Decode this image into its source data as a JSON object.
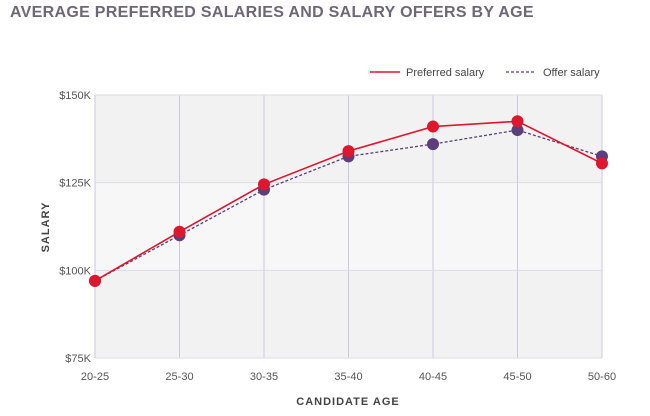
{
  "chart_data": {
    "type": "line",
    "title": "AVERAGE PREFERRED SALARIES AND SALARY OFFERS BY AGE",
    "xlabel": "CANDIDATE AGE",
    "ylabel": "SALARY",
    "categories": [
      "20-25",
      "25-30",
      "30-35",
      "35-40",
      "40-45",
      "45-50",
      "50-60"
    ],
    "y_ticks": [
      "$75K",
      "$100K",
      "$125K",
      "$150K"
    ],
    "ylim": [
      75000,
      150000
    ],
    "grid": true,
    "legend_position": "top-right",
    "series": [
      {
        "name": "Preferred salary",
        "color": "#e0152e",
        "line_style": "solid",
        "values": [
          97000,
          111000,
          124500,
          134000,
          141000,
          142500,
          130500
        ]
      },
      {
        "name": "Offer salary",
        "color": "#5b3f7c",
        "line_style": "dotted",
        "values": [
          97000,
          110000,
          123000,
          132500,
          136000,
          140000,
          132500
        ]
      }
    ]
  }
}
